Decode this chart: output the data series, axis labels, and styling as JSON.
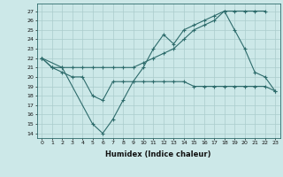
{
  "title": "",
  "xlabel": "Humidex (Indice chaleur)",
  "bg_color": "#cce8e8",
  "grid_color": "#aacccc",
  "line_color": "#2d6b6b",
  "xlim": [
    -0.5,
    23.5
  ],
  "ylim": [
    13.5,
    27.8
  ],
  "yticks": [
    14,
    15,
    16,
    17,
    18,
    19,
    20,
    21,
    22,
    23,
    24,
    25,
    26,
    27
  ],
  "xticks": [
    0,
    1,
    2,
    3,
    4,
    5,
    6,
    7,
    8,
    9,
    10,
    11,
    12,
    13,
    14,
    15,
    16,
    17,
    18,
    19,
    20,
    21,
    22,
    23
  ],
  "line1_x": [
    0,
    1,
    2,
    3,
    4,
    5,
    6,
    7,
    8,
    9,
    10,
    11,
    12,
    13,
    14,
    15,
    16,
    17,
    18,
    19,
    20,
    21,
    22
  ],
  "line1_y": [
    22,
    21,
    21,
    21,
    21,
    21,
    21,
    21,
    21,
    21,
    21.5,
    22,
    22.5,
    23,
    24,
    25,
    25.5,
    26,
    27,
    27,
    27,
    27,
    27
  ],
  "line2_x": [
    0,
    1,
    2,
    3,
    4,
    5,
    6,
    7,
    8,
    9,
    10,
    11,
    12,
    13,
    14,
    15,
    16,
    17,
    18,
    19,
    20,
    21,
    22,
    23
  ],
  "line2_y": [
    22,
    21,
    20.5,
    20,
    20,
    18,
    17.5,
    19.5,
    19.5,
    19.5,
    19.5,
    19.5,
    19.5,
    19.5,
    19.5,
    19,
    19,
    19,
    19,
    19,
    19,
    19,
    19,
    18.5
  ],
  "line3_x": [
    0,
    2,
    5,
    6,
    7,
    8,
    9,
    10,
    11,
    12,
    13,
    14,
    15,
    16,
    17,
    18,
    19,
    20,
    21,
    22,
    23
  ],
  "line3_y": [
    22,
    21,
    15,
    14,
    15.5,
    17.5,
    19.5,
    21,
    23,
    24.5,
    23.5,
    25,
    25.5,
    26,
    26.5,
    27,
    25,
    23,
    20.5,
    20,
    18.5
  ]
}
